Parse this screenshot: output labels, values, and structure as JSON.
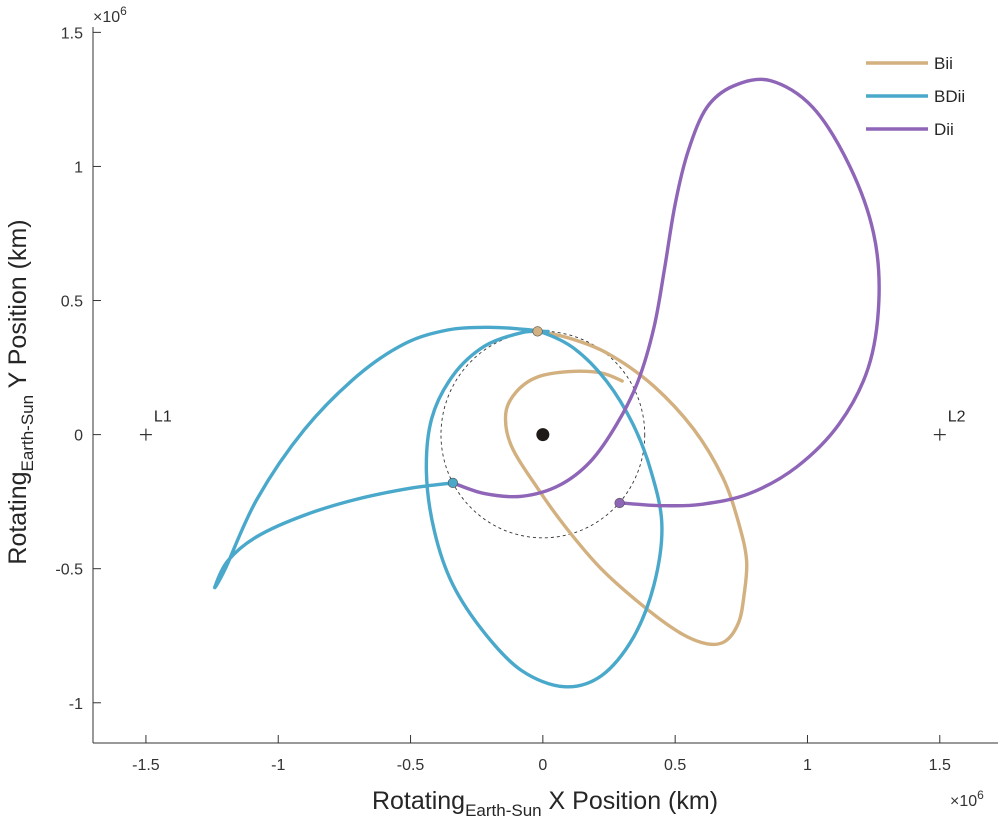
{
  "chart_data": {
    "type": "line",
    "title": "",
    "xlabel": {
      "main": "Rotating",
      "sub": "Earth-Sun",
      "rest": " X Position (km)"
    },
    "ylabel": {
      "main": "Rotating",
      "sub": "Earth-Sun",
      "rest": "  Y Position (km)"
    },
    "x_exponent": {
      "base": "×10",
      "power": "6"
    },
    "y_exponent": {
      "base": "×10",
      "power": "6"
    },
    "xlim": [
      -1.7,
      1.72
    ],
    "ylim": [
      -1.15,
      1.52
    ],
    "xticks": [
      -1.5,
      -1,
      -0.5,
      0,
      0.5,
      1,
      1.5
    ],
    "xtick_labels": [
      "-1.5",
      "-1",
      "-0.5",
      "0",
      "0.5",
      "1",
      "1.5"
    ],
    "yticks": [
      -1,
      -0.5,
      0,
      0.5,
      1,
      1.5
    ],
    "ytick_labels": [
      "-1",
      "-0.5",
      "0",
      "0.5",
      "1",
      "1.5"
    ],
    "grid": false,
    "legend_position": "top-right",
    "legend": [
      "Bii",
      "BDii",
      "Dii"
    ],
    "colors": {
      "Bii": "#d3b07f",
      "BDii": "#4aa9cb",
      "Dii": "#8f65b8",
      "earth": "#1f1a17",
      "axis": "#333333"
    },
    "series": [
      {
        "name": "Bii",
        "x": [
          -0.02,
          0.1,
          0.25,
          0.42,
          0.57,
          0.68,
          0.74,
          0.77,
          0.76,
          0.74,
          0.69,
          0.62,
          0.52,
          0.38,
          0.22,
          0.09,
          -0.02,
          -0.12,
          -0.14,
          -0.1,
          -0.02,
          0.1,
          0.22,
          0.3
        ],
        "y": [
          0.385,
          0.36,
          0.3,
          0.18,
          0.02,
          -0.16,
          -0.33,
          -0.47,
          -0.6,
          -0.7,
          -0.77,
          -0.78,
          -0.74,
          -0.64,
          -0.5,
          -0.35,
          -0.2,
          -0.04,
          0.08,
          0.16,
          0.215,
          0.235,
          0.23,
          0.2
        ]
      },
      {
        "name": "BDii",
        "x": [
          -0.34,
          -0.5,
          -0.7,
          -0.9,
          -1.08,
          -1.19,
          -1.24,
          -1.2,
          -1.08,
          -0.9,
          -0.7,
          -0.52,
          -0.36,
          -0.22,
          -0.1,
          0.0,
          0.12,
          0.24,
          0.34,
          0.41,
          0.45,
          0.42,
          0.34,
          0.22,
          0.08,
          -0.08,
          -0.22,
          -0.34,
          -0.41,
          -0.44,
          -0.42,
          -0.34,
          -0.22,
          -0.08,
          0.02
        ],
        "y": [
          -0.18,
          -0.2,
          -0.24,
          -0.3,
          -0.38,
          -0.47,
          -0.57,
          -0.5,
          -0.24,
          0.02,
          0.22,
          0.34,
          0.39,
          0.4,
          0.395,
          0.38,
          0.32,
          0.2,
          0.04,
          -0.14,
          -0.34,
          -0.56,
          -0.76,
          -0.9,
          -0.94,
          -0.88,
          -0.74,
          -0.56,
          -0.36,
          -0.14,
          0.06,
          0.22,
          0.33,
          0.38,
          0.385
        ]
      },
      {
        "name": "Dii",
        "x": [
          -0.34,
          -0.22,
          -0.08,
          0.06,
          0.18,
          0.28,
          0.36,
          0.42,
          0.46,
          0.5,
          0.55,
          0.62,
          0.72,
          0.86,
          1.02,
          1.16,
          1.25,
          1.27,
          1.23,
          1.12,
          0.96,
          0.78,
          0.6,
          0.46,
          0.36,
          0.3
        ],
        "y": [
          -0.18,
          -0.22,
          -0.23,
          -0.19,
          -0.1,
          0.04,
          0.2,
          0.4,
          0.62,
          0.86,
          1.06,
          1.22,
          1.3,
          1.32,
          1.22,
          1.0,
          0.75,
          0.5,
          0.25,
          0.04,
          -0.12,
          -0.22,
          -0.26,
          -0.265,
          -0.26,
          -0.255
        ]
      }
    ],
    "markers": [
      {
        "series": "Bii",
        "x": -0.02,
        "y": 0.385
      },
      {
        "series": "BDii",
        "x": -0.34,
        "y": -0.18
      },
      {
        "series": "Dii",
        "x": 0.29,
        "y": -0.255
      }
    ],
    "earth": {
      "x": 0,
      "y": 0
    },
    "reference_circle_radius": 0.385,
    "lagrange_points": [
      {
        "label": "L1",
        "x": -1.5,
        "y": 0
      },
      {
        "label": "L2",
        "x": 1.5,
        "y": 0
      }
    ]
  }
}
